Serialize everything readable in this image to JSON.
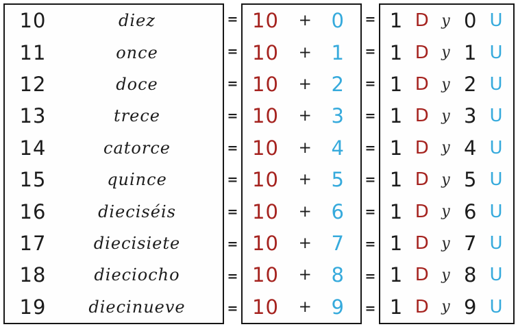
{
  "colors": {
    "tens_red": "#A5231F",
    "units_blue": "#36AADC",
    "ink_black": "#1c1c1c"
  },
  "rows": [
    {
      "number": "10",
      "name": "diez",
      "eq": "=",
      "tens": "10",
      "plus": "+",
      "units": "0",
      "d_count": "1",
      "d_label": "D",
      "conj": "y",
      "u_count": "0",
      "u_label": "U"
    },
    {
      "number": "11",
      "name": "once",
      "eq": "=",
      "tens": "10",
      "plus": "+",
      "units": "1",
      "d_count": "1",
      "d_label": "D",
      "conj": "y",
      "u_count": "1",
      "u_label": "U"
    },
    {
      "number": "12",
      "name": "doce",
      "eq": "=",
      "tens": "10",
      "plus": "+",
      "units": "2",
      "d_count": "1",
      "d_label": "D",
      "conj": "y",
      "u_count": "2",
      "u_label": "U"
    },
    {
      "number": "13",
      "name": "trece",
      "eq": "=",
      "tens": "10",
      "plus": "+",
      "units": "3",
      "d_count": "1",
      "d_label": "D",
      "conj": "y",
      "u_count": "3",
      "u_label": "U"
    },
    {
      "number": "14",
      "name": "catorce",
      "eq": "=",
      "tens": "10",
      "plus": "+",
      "units": "4",
      "d_count": "1",
      "d_label": "D",
      "conj": "y",
      "u_count": "4",
      "u_label": "U"
    },
    {
      "number": "15",
      "name": "quince",
      "eq": "=",
      "tens": "10",
      "plus": "+",
      "units": "5",
      "d_count": "1",
      "d_label": "D",
      "conj": "y",
      "u_count": "5",
      "u_label": "U"
    },
    {
      "number": "16",
      "name": "dieciséis",
      "eq": "=",
      "tens": "10",
      "plus": "+",
      "units": "6",
      "d_count": "1",
      "d_label": "D",
      "conj": "y",
      "u_count": "6",
      "u_label": "U"
    },
    {
      "number": "17",
      "name": "diecisiete",
      "eq": "=",
      "tens": "10",
      "plus": "+",
      "units": "7",
      "d_count": "1",
      "d_label": "D",
      "conj": "y",
      "u_count": "7",
      "u_label": "U"
    },
    {
      "number": "18",
      "name": "dieciocho",
      "eq": "=",
      "tens": "10",
      "plus": "+",
      "units": "8",
      "d_count": "1",
      "d_label": "D",
      "conj": "y",
      "u_count": "8",
      "u_label": "U"
    },
    {
      "number": "19",
      "name": "diecinueve",
      "eq": "=",
      "tens": "10",
      "plus": "+",
      "units": "9",
      "d_count": "1",
      "d_label": "D",
      "conj": "y",
      "u_count": "9",
      "u_label": "U"
    }
  ]
}
